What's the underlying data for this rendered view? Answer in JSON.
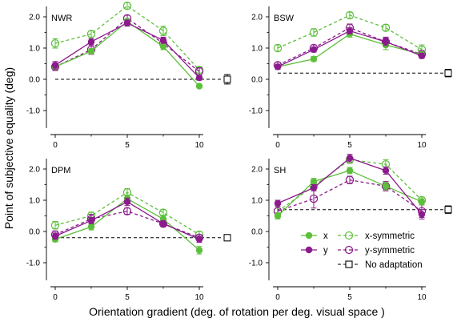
{
  "figure": {
    "ylabel": "Point of subjective equality (deg)",
    "xlabel": "Orientation gradient (deg. of rotation per deg. visual space )"
  },
  "colors": {
    "x": "#5cbf3a",
    "y": "#8b1a8c",
    "no_adaptation": "#000000"
  },
  "legend": {
    "x": "x",
    "y": "y",
    "x_symmetric": "x-symmetric",
    "y_symmetric": "y-symmetric",
    "no_adaptation": "No adaptation"
  },
  "chart_data": [
    {
      "type": "line",
      "title": "NWR",
      "x": [
        0,
        2.5,
        5,
        7.5,
        10
      ],
      "x_ticks": [
        "0",
        "5",
        "10"
      ],
      "y_ticks": [
        "-1.0",
        "0.0",
        "1.0",
        "2.0"
      ],
      "ylim": [
        -1.3,
        2.6
      ],
      "series": [
        {
          "name": "x",
          "values": [
            0.4,
            0.9,
            1.85,
            1.05,
            -0.22
          ],
          "errors": [
            0.08,
            0.08,
            0.1,
            0.1,
            0.05
          ]
        },
        {
          "name": "y",
          "values": [
            0.45,
            1.2,
            1.8,
            1.25,
            0.05
          ],
          "errors": [
            0.12,
            0.1,
            0.1,
            0.1,
            0.08
          ]
        },
        {
          "name": "x-symmetric",
          "values": [
            1.15,
            1.45,
            2.35,
            1.55,
            0.3
          ],
          "errors": [
            0.15,
            0.1,
            0.1,
            0.15,
            0.1
          ]
        },
        {
          "name": "y-symmetric",
          "values": [
            0.4,
            0.95,
            1.95,
            1.15,
            0.25
          ],
          "errors": [
            0.12,
            0.15,
            0.1,
            0.1,
            0.12
          ]
        }
      ],
      "no_adaptation": {
        "value": 0.0,
        "error": 0.15
      }
    },
    {
      "type": "line",
      "title": "BSW",
      "x": [
        0,
        2.5,
        5,
        7.5,
        10
      ],
      "x_ticks": [
        "0",
        "5",
        "10"
      ],
      "y_ticks": [
        "-1.0",
        "0.0",
        "1.0",
        "2.0"
      ],
      "ylim": [
        -1.3,
        2.6
      ],
      "series": [
        {
          "name": "x",
          "values": [
            0.4,
            0.65,
            1.45,
            1.1,
            0.8
          ],
          "errors": [
            0.08,
            0.08,
            0.1,
            0.15,
            0.08
          ]
        },
        {
          "name": "y",
          "values": [
            0.4,
            0.95,
            1.55,
            1.2,
            0.75
          ],
          "errors": [
            0.08,
            0.08,
            0.1,
            0.12,
            0.08
          ]
        },
        {
          "name": "x-symmetric",
          "values": [
            1.0,
            1.5,
            2.05,
            1.65,
            0.95
          ],
          "errors": [
            0.1,
            0.12,
            0.1,
            0.1,
            0.15
          ]
        },
        {
          "name": "y-symmetric",
          "values": [
            0.45,
            1.0,
            1.65,
            1.2,
            0.8
          ],
          "errors": [
            0.1,
            0.1,
            0.12,
            0.15,
            0.12
          ]
        }
      ],
      "no_adaptation": {
        "value": 0.2,
        "error": 0.12
      }
    },
    {
      "type": "line",
      "title": "DPM",
      "x": [
        0,
        2.5,
        5,
        7.5,
        10
      ],
      "x_ticks": [
        "0",
        "5",
        "10"
      ],
      "y_ticks": [
        "-1.0",
        "0.0",
        "1.0",
        "2.0"
      ],
      "ylim": [
        -1.3,
        2.6
      ],
      "series": [
        {
          "name": "x",
          "values": [
            -0.25,
            0.15,
            1.05,
            0.4,
            -0.6
          ],
          "errors": [
            0.08,
            0.1,
            0.12,
            0.12,
            0.12
          ]
        },
        {
          "name": "y",
          "values": [
            -0.15,
            0.35,
            0.95,
            0.25,
            -0.25
          ],
          "errors": [
            0.1,
            0.1,
            0.12,
            0.1,
            0.1
          ]
        },
        {
          "name": "x-symmetric",
          "values": [
            0.2,
            0.5,
            1.25,
            0.6,
            -0.1
          ],
          "errors": [
            0.12,
            0.12,
            0.12,
            0.1,
            0.1
          ]
        },
        {
          "name": "y-symmetric",
          "values": [
            -0.1,
            0.4,
            0.65,
            0.25,
            -0.2
          ],
          "errors": [
            0.12,
            0.15,
            0.1,
            0.1,
            0.1
          ]
        }
      ],
      "no_adaptation": {
        "value": -0.2,
        "error": 0.1
      }
    },
    {
      "type": "line",
      "title": "SH",
      "x": [
        0,
        2.5,
        5,
        7.5,
        10
      ],
      "x_ticks": [
        "0",
        "5",
        "10"
      ],
      "y_ticks": [
        "-1.0",
        "0.0",
        "1.0",
        "2.0"
      ],
      "ylim": [
        -1.3,
        2.6
      ],
      "series": [
        {
          "name": "x",
          "values": [
            0.5,
            1.6,
            1.95,
            1.45,
            0.95
          ],
          "errors": [
            0.1,
            0.1,
            0.1,
            0.12,
            0.1
          ]
        },
        {
          "name": "y",
          "values": [
            0.9,
            1.4,
            2.35,
            1.95,
            0.55
          ],
          "errors": [
            0.1,
            0.1,
            0.12,
            0.12,
            0.15
          ]
        },
        {
          "name": "x-symmetric",
          "values": [
            0.65,
            1.45,
            2.3,
            2.15,
            1.0
          ],
          "errors": [
            0.1,
            0.12,
            0.12,
            0.15,
            0.1
          ]
        },
        {
          "name": "y-symmetric",
          "values": [
            0.65,
            1.05,
            1.65,
            1.45,
            0.65
          ],
          "errors": [
            0.2,
            0.3,
            0.12,
            0.15,
            0.2
          ]
        }
      ],
      "no_adaptation": {
        "value": 0.7,
        "error": 0.12
      }
    }
  ]
}
